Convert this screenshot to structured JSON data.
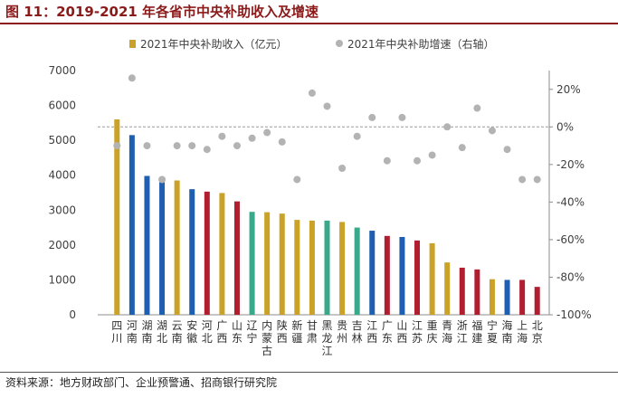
{
  "page": {
    "title": "图 11：2019-2021 年各省市中央补助收入及增速",
    "source": "资料来源：地方财政部门、企业预警通、招商银行研究院"
  },
  "colors": {
    "title": "#8b1a1a",
    "gold": "#c9a227",
    "blue": "#1f5fb0",
    "red": "#b01e2f",
    "green": "#3aa88a",
    "dot": "#b3b3b3"
  },
  "chart_data": {
    "type": "bar+scatter",
    "title": "2019-2021 年各省市中央补助收入及增速",
    "categories": [
      "四川",
      "河南",
      "湖南",
      "湖北",
      "云南",
      "安徽",
      "河北",
      "广西",
      "山东",
      "辽宁",
      "内蒙古",
      "陕西",
      "新疆",
      "甘肃",
      "黑龙江",
      "贵州",
      "吉林",
      "江西",
      "广东",
      "山西",
      "江苏",
      "重庆",
      "青海",
      "浙江",
      "福建",
      "宁夏",
      "海南",
      "上海",
      "北京"
    ],
    "series": [
      {
        "name": "2021年中央补助收入（亿元）",
        "type": "bar",
        "axis": "left",
        "values": [
          5600,
          5150,
          3980,
          3800,
          3850,
          3600,
          3530,
          3490,
          3250,
          2950,
          2940,
          2900,
          2720,
          2700,
          2700,
          2660,
          2500,
          2410,
          2260,
          2230,
          2130,
          2050,
          1500,
          1350,
          1300,
          1020,
          1000,
          1000,
          800
        ],
        "colors": [
          "gold",
          "blue",
          "blue",
          "blue",
          "gold",
          "blue",
          "red",
          "gold",
          "red",
          "green",
          "gold",
          "gold",
          "gold",
          "gold",
          "green",
          "gold",
          "green",
          "blue",
          "red",
          "blue",
          "red",
          "gold",
          "gold",
          "red",
          "red",
          "gold",
          "blue",
          "red",
          "red"
        ]
      },
      {
        "name": "2021年中央补助增速（右轴）",
        "type": "scatter",
        "axis": "right",
        "values": [
          -10,
          26,
          -10,
          -28,
          -10,
          -10,
          -12,
          -5,
          -10,
          -6,
          -3,
          -8,
          -28,
          18,
          11,
          -22,
          -5,
          5,
          -18,
          5,
          -18,
          -15,
          0,
          -11,
          10,
          -2,
          -12,
          -28,
          -28
        ]
      }
    ],
    "left_axis": {
      "ylim": [
        0,
        7000
      ],
      "ticks": [
        0,
        1000,
        2000,
        3000,
        4000,
        5000,
        6000,
        7000
      ],
      "tick_labels": [
        "0",
        "1000",
        "2000",
        "3000",
        "4000",
        "5000",
        "6000",
        "7000"
      ]
    },
    "right_axis": {
      "ylim": [
        -100,
        30
      ],
      "ticks": [
        -100,
        -80,
        -60,
        -40,
        -20,
        0,
        20
      ],
      "tick_labels": [
        "-100%",
        "-80%",
        "-60%",
        "-40%",
        "-20%",
        "0%",
        "20%"
      ]
    },
    "reference_line": {
      "axis": "right",
      "value": 0,
      "style": "dashed"
    },
    "legend": [
      "2021年中央补助收入（亿元）",
      "2021年中央补助增速（右轴）"
    ],
    "legend_position": "top"
  }
}
